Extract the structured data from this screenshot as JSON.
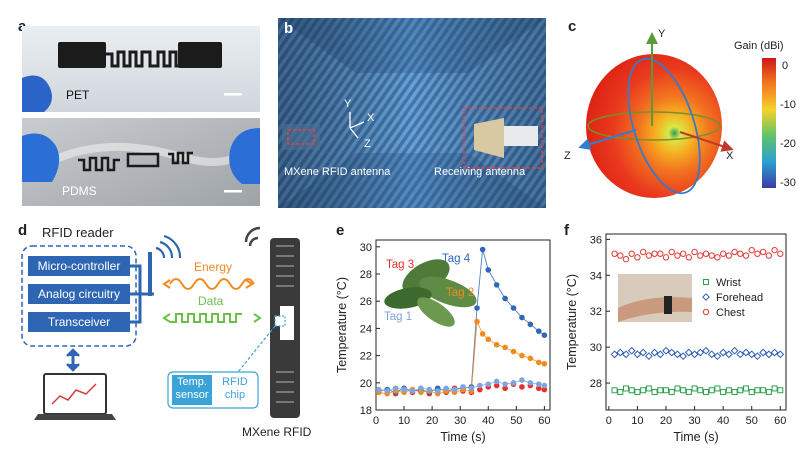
{
  "panels": {
    "a": {
      "letter": "a",
      "pet_label": "PET",
      "pdms_label": "PDMS"
    },
    "b": {
      "letter": "b",
      "axis_y": "Y",
      "axis_x": "X",
      "axis_z": "Z",
      "left_caption": "MXene RFID antenna",
      "right_caption": "Receiving antenna"
    },
    "c": {
      "letter": "c",
      "axis_y": "Y",
      "axis_x": "X",
      "axis_z": "Z",
      "colorbar_title": "Gain (dBi)",
      "colorbar_ticks": [
        "0",
        "-10",
        "-20",
        "-30"
      ]
    },
    "d": {
      "letter": "d",
      "reader_title": "RFID reader",
      "blocks": [
        "Micro-controller",
        "Analog circuitry",
        "Transceiver"
      ],
      "energy_label": "Energy",
      "data_label": "Data",
      "temp_sensor_label": "Temp.\nsensor",
      "temp_sensor_line1": "Temp.",
      "temp_sensor_line2": "sensor",
      "rfid_chip_line1": "RFID",
      "rfid_chip_line2": "chip",
      "mxene_rfid_label": "MXene RFID"
    },
    "e": {
      "letter": "e"
    },
    "f": {
      "letter": "f"
    }
  },
  "chart_data": [
    {
      "type": "scatter",
      "panel": "e",
      "xlabel": "Time (s)",
      "ylabel": "Temperature (°C)",
      "xlim": [
        0,
        62
      ],
      "ylim": [
        18,
        30.5
      ],
      "xticks": [
        0,
        10,
        20,
        30,
        40,
        50,
        60
      ],
      "yticks": [
        18,
        20,
        22,
        24,
        26,
        28,
        30
      ],
      "grid": false,
      "series": [
        {
          "name": "Tag 3",
          "color": "#e8302a",
          "lines": false,
          "x": [
            1,
            4,
            7,
            10,
            13,
            16,
            19,
            22,
            25,
            28,
            31,
            34,
            37,
            40,
            43,
            46,
            49,
            52,
            55,
            58,
            60
          ],
          "y": [
            19.3,
            19.4,
            19.2,
            19.5,
            19.3,
            19.4,
            19.2,
            19.5,
            19.3,
            19.6,
            19.4,
            19.3,
            19.5,
            19.7,
            19.8,
            19.6,
            19.9,
            19.7,
            19.8,
            19.6,
            19.5
          ]
        },
        {
          "name": "Tag 4",
          "color": "#2f68b8",
          "lines": true,
          "x": [
            1,
            4,
            7,
            10,
            13,
            16,
            19,
            22,
            25,
            28,
            31,
            34,
            36,
            38,
            40,
            43,
            46,
            49,
            52,
            55,
            58,
            60
          ],
          "y": [
            19.4,
            19.5,
            19.3,
            19.6,
            19.4,
            19.5,
            19.3,
            19.6,
            19.4,
            19.5,
            19.6,
            19.7,
            25.5,
            29.8,
            28.3,
            27.2,
            26.2,
            25.5,
            24.8,
            24.3,
            23.8,
            23.5
          ]
        },
        {
          "name": "Tag 2",
          "color": "#f28a1e",
          "lines": true,
          "x": [
            1,
            4,
            7,
            10,
            13,
            16,
            19,
            22,
            25,
            28,
            31,
            34,
            36,
            38,
            40,
            43,
            46,
            49,
            52,
            55,
            58,
            60
          ],
          "y": [
            19.3,
            19.2,
            19.4,
            19.3,
            19.5,
            19.3,
            19.4,
            19.2,
            19.4,
            19.3,
            19.5,
            19.4,
            24.5,
            23.6,
            23.2,
            22.8,
            22.6,
            22.3,
            22.0,
            21.8,
            21.5,
            21.4
          ]
        },
        {
          "name": "Tag 1",
          "color": "#7fa6dc",
          "lines": true,
          "x": [
            1,
            4,
            7,
            10,
            13,
            16,
            19,
            22,
            25,
            28,
            31,
            34,
            37,
            40,
            43,
            46,
            49,
            52,
            55,
            58,
            60
          ],
          "y": [
            19.5,
            19.4,
            19.6,
            19.5,
            19.4,
            19.6,
            19.5,
            19.4,
            19.6,
            19.5,
            19.7,
            19.6,
            19.8,
            19.9,
            20.1,
            19.9,
            20.0,
            20.2,
            20.0,
            19.9,
            19.8
          ]
        }
      ]
    },
    {
      "type": "scatter",
      "panel": "f",
      "xlabel": "Time (s)",
      "ylabel": "Temperature (°C)",
      "xlim": [
        -1,
        62
      ],
      "ylim": [
        26.5,
        36.3
      ],
      "xticks": [
        0,
        10,
        20,
        30,
        40,
        50,
        60
      ],
      "yticks": [
        28,
        30,
        32,
        34,
        36
      ],
      "grid": false,
      "legend": "center-right",
      "series": [
        {
          "name": "Wrist",
          "color": "#2ea24b",
          "marker": "square",
          "x": [
            2,
            4,
            6,
            8,
            10,
            12,
            14,
            16,
            18,
            20,
            22,
            24,
            26,
            28,
            30,
            32,
            34,
            36,
            38,
            40,
            42,
            44,
            46,
            48,
            50,
            52,
            54,
            56,
            58,
            60
          ],
          "y": [
            27.6,
            27.5,
            27.7,
            27.6,
            27.5,
            27.6,
            27.7,
            27.5,
            27.6,
            27.6,
            27.5,
            27.7,
            27.6,
            27.5,
            27.7,
            27.6,
            27.5,
            27.6,
            27.7,
            27.5,
            27.6,
            27.5,
            27.6,
            27.7,
            27.5,
            27.6,
            27.6,
            27.5,
            27.7,
            27.6
          ]
        },
        {
          "name": "Forehead",
          "color": "#2f5fb3",
          "marker": "diamond",
          "x": [
            2,
            4,
            6,
            8,
            10,
            12,
            14,
            16,
            18,
            20,
            22,
            24,
            26,
            28,
            30,
            32,
            34,
            36,
            38,
            40,
            42,
            44,
            46,
            48,
            50,
            52,
            54,
            56,
            58,
            60
          ],
          "y": [
            29.6,
            29.7,
            29.6,
            29.8,
            29.6,
            29.7,
            29.5,
            29.7,
            29.6,
            29.8,
            29.7,
            29.6,
            29.5,
            29.7,
            29.6,
            29.7,
            29.8,
            29.6,
            29.5,
            29.7,
            29.6,
            29.8,
            29.6,
            29.7,
            29.6,
            29.5,
            29.7,
            29.6,
            29.7,
            29.6
          ]
        },
        {
          "name": "Chest",
          "color": "#e23b35",
          "marker": "circle",
          "x": [
            2,
            4,
            6,
            8,
            10,
            12,
            14,
            16,
            18,
            20,
            22,
            24,
            26,
            28,
            30,
            32,
            34,
            36,
            38,
            40,
            42,
            44,
            46,
            48,
            50,
            52,
            54,
            56,
            58,
            60
          ],
          "y": [
            35.2,
            35.1,
            34.9,
            35.2,
            35.0,
            35.3,
            35.1,
            35.2,
            35.2,
            35.0,
            35.3,
            35.1,
            35.2,
            35.0,
            35.3,
            35.1,
            35.2,
            35.1,
            35.0,
            35.2,
            35.1,
            35.3,
            35.2,
            35.1,
            35.4,
            35.2,
            35.3,
            35.1,
            35.4,
            35.2
          ]
        }
      ]
    }
  ]
}
